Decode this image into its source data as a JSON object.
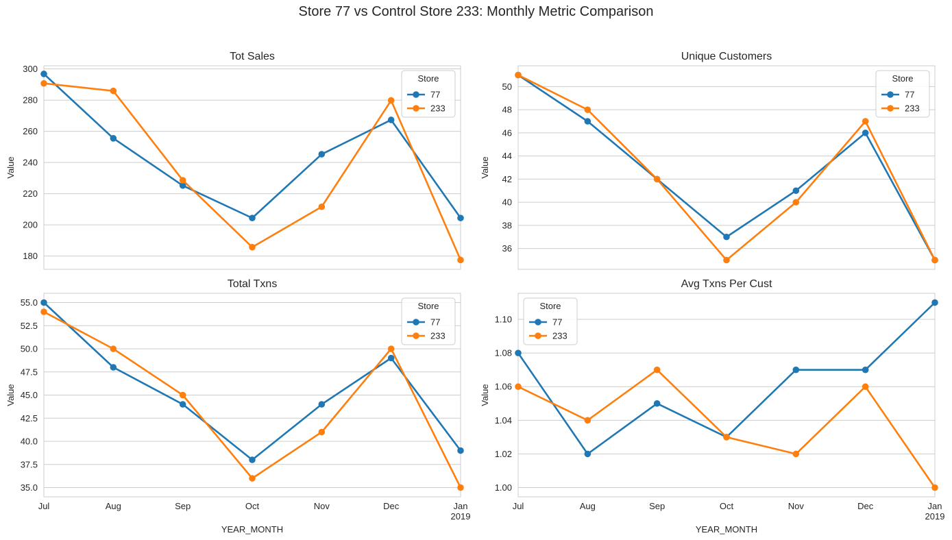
{
  "suptitle": "Store 77 vs Control Store 233: Monthly Metric Comparison",
  "colors": {
    "store_77": "#1f77b4",
    "store_233": "#ff7f0e",
    "grid": "#cccccc",
    "axis": "#cccccc",
    "text": "#262626"
  },
  "chart_data": [
    {
      "type": "line",
      "title": "Tot Sales",
      "xlabel": "",
      "ylabel": "Value",
      "x": [
        "Jul",
        "Aug",
        "Sep",
        "Oct",
        "Nov",
        "Dec",
        "Jan\n2019"
      ],
      "yticks": [
        180,
        200,
        220,
        240,
        260,
        280,
        300
      ],
      "ylim": [
        171.5,
        302
      ],
      "show_x_ticklabels": false,
      "grid": true,
      "legend": {
        "title": "Store",
        "placement": "upper right"
      },
      "series": [
        {
          "name": "77",
          "values": [
            296.8,
            255.5,
            225.2,
            204.4,
            245.3,
            267.3,
            204.4
          ]
        },
        {
          "name": "233",
          "values": [
            290.7,
            285.9,
            228.6,
            185.7,
            211.6,
            279.8,
            177.5
          ]
        }
      ]
    },
    {
      "type": "line",
      "title": "Unique Customers",
      "xlabel": "",
      "ylabel": "Value",
      "x": [
        "Jul",
        "Aug",
        "Sep",
        "Oct",
        "Nov",
        "Dec",
        "Jan\n2019"
      ],
      "yticks": [
        36,
        38,
        40,
        42,
        44,
        46,
        48,
        50
      ],
      "ylim": [
        34.2,
        51.8
      ],
      "show_x_ticklabels": false,
      "grid": true,
      "legend": {
        "title": "Store",
        "placement": "upper right"
      },
      "series": [
        {
          "name": "77",
          "values": [
            51,
            47,
            42,
            37,
            41,
            46,
            35
          ]
        },
        {
          "name": "233",
          "values": [
            51,
            48,
            42,
            35,
            40,
            47,
            35
          ]
        }
      ]
    },
    {
      "type": "line",
      "title": "Total Txns",
      "xlabel": "YEAR_MONTH",
      "ylabel": "Value",
      "x": [
        "Jul",
        "Aug",
        "Sep",
        "Oct",
        "Nov",
        "Dec",
        "Jan\n2019"
      ],
      "yticks": [
        35.0,
        37.5,
        40.0,
        42.5,
        45.0,
        47.5,
        50.0,
        52.5,
        55.0
      ],
      "ytick_labels": [
        "35.0",
        "37.5",
        "40.0",
        "42.5",
        "45.0",
        "47.5",
        "50.0",
        "52.5",
        "55.0"
      ],
      "ylim": [
        34,
        56
      ],
      "show_x_ticklabels": true,
      "grid": true,
      "legend": {
        "title": "Store",
        "placement": "upper right"
      },
      "series": [
        {
          "name": "77",
          "values": [
            55,
            48,
            44,
            38,
            44,
            49,
            39
          ]
        },
        {
          "name": "233",
          "values": [
            54,
            50,
            45,
            36,
            41,
            50,
            35
          ]
        }
      ]
    },
    {
      "type": "line",
      "title": "Avg Txns Per Cust",
      "xlabel": "YEAR_MONTH",
      "ylabel": "Value",
      "x": [
        "Jul",
        "Aug",
        "Sep",
        "Oct",
        "Nov",
        "Dec",
        "Jan\n2019"
      ],
      "yticks": [
        1.0,
        1.02,
        1.04,
        1.06,
        1.08,
        1.1
      ],
      "ytick_labels": [
        "1.00",
        "1.02",
        "1.04",
        "1.06",
        "1.08",
        "1.10"
      ],
      "ylim": [
        0.9945,
        1.1155
      ],
      "show_x_ticklabels": true,
      "grid": true,
      "legend": {
        "title": "Store",
        "placement": "upper left"
      },
      "series": [
        {
          "name": "77",
          "values": [
            1.08,
            1.02,
            1.05,
            1.03,
            1.07,
            1.07,
            1.11
          ]
        },
        {
          "name": "233",
          "values": [
            1.06,
            1.04,
            1.07,
            1.03,
            1.02,
            1.06,
            1.0
          ]
        }
      ]
    }
  ]
}
